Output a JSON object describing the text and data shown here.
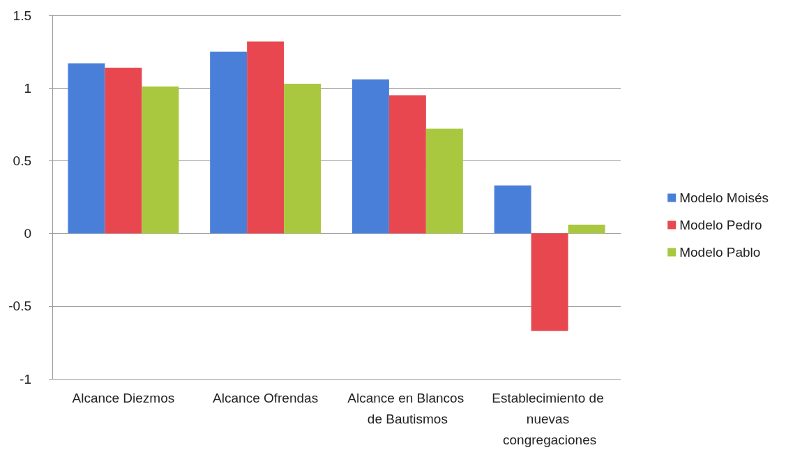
{
  "chart_data": {
    "type": "bar",
    "categories": [
      "Alcance Diezmos",
      "Alcance Ofrendas",
      "Alcance en Blancos de Bautismos",
      "Establecimiento de nuevas congregaciones"
    ],
    "series": [
      {
        "name": "Modelo Moisés",
        "color": "#4a7fd9",
        "values": [
          1.17,
          1.25,
          1.06,
          0.33
        ]
      },
      {
        "name": "Modelo Pedro",
        "color": "#e8474f",
        "values": [
          1.14,
          1.32,
          0.95,
          -0.67
        ]
      },
      {
        "name": "Modelo Pablo",
        "color": "#a9c73f",
        "values": [
          1.01,
          1.03,
          0.72,
          0.06
        ]
      }
    ],
    "ylim": [
      -1,
      1.5
    ],
    "yticks": [
      -1,
      -0.5,
      0,
      0.5,
      1,
      1.5
    ],
    "grid": "y",
    "legend": "right"
  }
}
